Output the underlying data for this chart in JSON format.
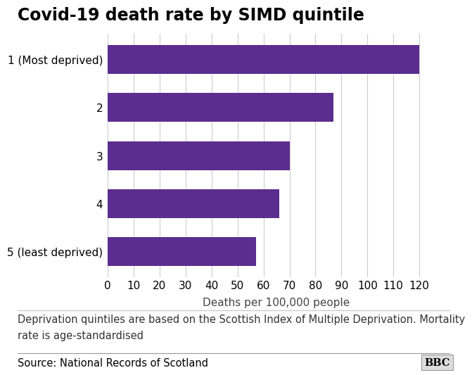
{
  "title": "Covid-19 death rate by SIMD quintile",
  "categories": [
    "1 (Most deprived)",
    "2",
    "3",
    "4",
    "5 (least deprived)"
  ],
  "values": [
    120,
    87,
    70,
    66,
    57
  ],
  "bar_color": "#5B2D8E",
  "xlabel": "Deaths per 100,000 people",
  "xlim": [
    0,
    130
  ],
  "xticks": [
    0,
    10,
    20,
    30,
    40,
    50,
    60,
    70,
    80,
    90,
    100,
    110,
    120
  ],
  "background_color": "#ffffff",
  "footnote_line1": "Deprivation quintiles are based on the Scottish Index of Multiple Deprivation. Mortality",
  "footnote_line2": "rate is age-standardised",
  "source": "Source: National Records of Scotland",
  "bbc_label": "BBC",
  "title_fontsize": 17,
  "axis_fontsize": 11,
  "footnote_fontsize": 10.5,
  "source_fontsize": 10.5,
  "bar_height": 0.6
}
